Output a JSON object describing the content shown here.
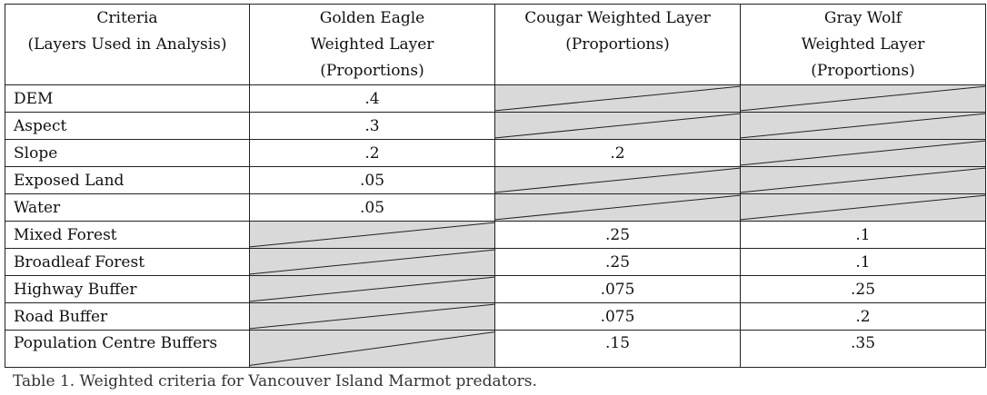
{
  "table": {
    "headers": [
      [
        "Criteria",
        "(Layers Used in Analysis)"
      ],
      [
        "Golden Eagle",
        "Weighted Layer",
        "(Proportions)"
      ],
      [
        "Cougar Weighted Layer",
        "(Proportions)"
      ],
      [
        "Gray Wolf",
        "Weighted Layer",
        "(Proportions)"
      ]
    ],
    "rows": [
      {
        "criteria": "DEM",
        "eagle": ".4",
        "cougar": null,
        "wolf": null
      },
      {
        "criteria": "Aspect",
        "eagle": ".3",
        "cougar": null,
        "wolf": null
      },
      {
        "criteria": "Slope",
        "eagle": ".2",
        "cougar": ".2",
        "wolf": null
      },
      {
        "criteria": "Exposed Land",
        "eagle": ".05",
        "cougar": null,
        "wolf": null
      },
      {
        "criteria": "Water",
        "eagle": ".05",
        "cougar": null,
        "wolf": null
      },
      {
        "criteria": "Mixed Forest",
        "eagle": null,
        "cougar": ".25",
        "wolf": ".1"
      },
      {
        "criteria": "Broadleaf Forest",
        "eagle": null,
        "cougar": ".25",
        "wolf": ".1"
      },
      {
        "criteria": "Highway Buffer",
        "eagle": null,
        "cougar": ".075",
        "wolf": ".25"
      },
      {
        "criteria": "Road Buffer",
        "eagle": null,
        "cougar": ".075",
        "wolf": ".2"
      },
      {
        "criteria": "Population Centre Buffers",
        "eagle": null,
        "cougar": ".15",
        "wolf": ".35"
      }
    ]
  },
  "caption": "Table 1. Weighted criteria for Vancouver Island Marmot predators.",
  "colors": {
    "not_applicable_fill": "#d9d9d9",
    "border": "#222222"
  }
}
